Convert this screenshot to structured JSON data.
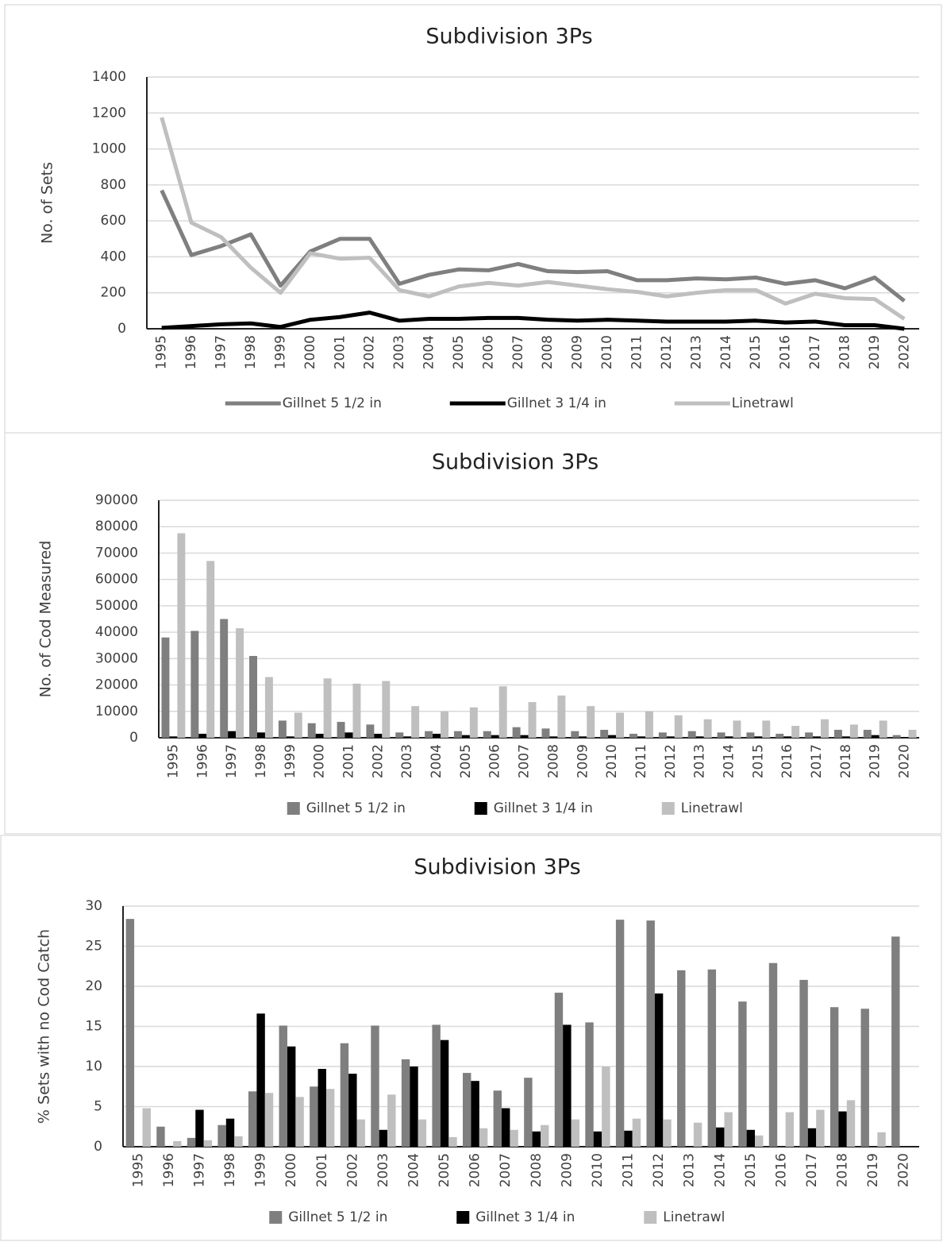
{
  "chart_data": [
    {
      "type": "line",
      "title": "Subdivision 3Ps",
      "y_label": "No. of Sets",
      "categories": [
        "1995",
        "1996",
        "1997",
        "1998",
        "1999",
        "2000",
        "2001",
        "2002",
        "2003",
        "2004",
        "2005",
        "2006",
        "2007",
        "2008",
        "2009",
        "2010",
        "2011",
        "2012",
        "2013",
        "2014",
        "2015",
        "2016",
        "2017",
        "2018",
        "2019",
        "2020"
      ],
      "series": [
        {
          "name": "Gillnet 5 1/2 in",
          "color": "#7f7f7f",
          "values": [
            770,
            410,
            460,
            525,
            240,
            430,
            500,
            500,
            250,
            300,
            330,
            325,
            360,
            320,
            315,
            320,
            270,
            270,
            280,
            275,
            285,
            250,
            270,
            225,
            285,
            155
          ]
        },
        {
          "name": "Gillnet 3 1/4 in",
          "color": "#000000",
          "values": [
            5,
            15,
            25,
            30,
            10,
            50,
            65,
            90,
            45,
            55,
            55,
            60,
            60,
            50,
            45,
            50,
            45,
            40,
            40,
            40,
            45,
            35,
            40,
            20,
            20,
            0
          ]
        },
        {
          "name": "Linetrawl",
          "color": "#bfbfbf",
          "values": [
            1175,
            590,
            510,
            340,
            200,
            420,
            390,
            395,
            215,
            180,
            235,
            255,
            240,
            260,
            240,
            220,
            205,
            180,
            200,
            215,
            215,
            140,
            195,
            170,
            165,
            55
          ]
        }
      ],
      "ylim": [
        0,
        1400
      ],
      "yticks": [
        0,
        200,
        400,
        600,
        800,
        1000,
        1200,
        1400
      ],
      "grid": true,
      "legend": "bottom"
    },
    {
      "type": "bar",
      "title": "Subdivision 3Ps",
      "y_label": "No. of Cod Measured",
      "categories": [
        "1995",
        "1996",
        "1997",
        "1998",
        "1999",
        "2000",
        "2001",
        "2002",
        "2003",
        "2004",
        "2005",
        "2006",
        "2007",
        "2008",
        "2009",
        "2010",
        "2011",
        "2012",
        "2013",
        "2014",
        "2015",
        "2016",
        "2017",
        "2018",
        "2019",
        "2020"
      ],
      "series": [
        {
          "name": "Gillnet 5 1/2 in",
          "color": "#7f7f7f",
          "values": [
            38000,
            40500,
            45000,
            31000,
            6500,
            5500,
            6000,
            5000,
            2000,
            2500,
            2500,
            2500,
            4000,
            3500,
            2500,
            3000,
            1500,
            2000,
            2500,
            2000,
            2000,
            1500,
            2000,
            3000,
            3000,
            1000
          ]
        },
        {
          "name": "Gillnet 3 1/4 in",
          "color": "#000000",
          "values": [
            500,
            1500,
            2500,
            2000,
            500,
            1500,
            2000,
            1500,
            500,
            1500,
            1000,
            1000,
            1000,
            500,
            500,
            1000,
            500,
            500,
            500,
            500,
            500,
            500,
            500,
            500,
            1000,
            200
          ]
        },
        {
          "name": "Linetrawl",
          "color": "#bfbfbf",
          "values": [
            77500,
            67000,
            41500,
            23000,
            9500,
            22500,
            20500,
            21500,
            12000,
            10000,
            11500,
            19500,
            13500,
            16000,
            12000,
            9500,
            10000,
            8500,
            7000,
            6500,
            6500,
            4500,
            7000,
            5000,
            6500,
            3000
          ]
        }
      ],
      "ylim": [
        0,
        90000
      ],
      "yticks": [
        0,
        10000,
        20000,
        30000,
        40000,
        50000,
        60000,
        70000,
        80000,
        90000
      ],
      "grid": true,
      "legend": "bottom"
    },
    {
      "type": "bar",
      "title": "Subdivision 3Ps",
      "y_label": "% Sets with no Cod Catch",
      "categories": [
        "1995",
        "1996",
        "1997",
        "1998",
        "1999",
        "2000",
        "2001",
        "2002",
        "2003",
        "2004",
        "2005",
        "2006",
        "2007",
        "2008",
        "2009",
        "2010",
        "2011",
        "2012",
        "2013",
        "2014",
        "2015",
        "2016",
        "2017",
        "2018",
        "2019",
        "2020"
      ],
      "series": [
        {
          "name": "Gillnet 5 1/2 in",
          "color": "#7f7f7f",
          "values": [
            28.4,
            2.5,
            1.1,
            2.7,
            6.9,
            15.1,
            7.5,
            12.9,
            15.1,
            10.9,
            15.2,
            9.2,
            7.0,
            8.6,
            19.2,
            15.5,
            28.3,
            28.2,
            22.0,
            22.1,
            18.1,
            22.9,
            20.8,
            17.4,
            17.2,
            26.2
          ]
        },
        {
          "name": "Gillnet 3 1/4 in",
          "color": "#000000",
          "values": [
            0,
            0,
            4.6,
            3.5,
            16.6,
            12.5,
            9.7,
            9.1,
            2.1,
            10.0,
            13.3,
            8.2,
            4.8,
            1.9,
            15.2,
            1.9,
            2.0,
            19.1,
            0,
            2.4,
            2.1,
            0,
            2.3,
            4.4,
            0,
            0
          ]
        },
        {
          "name": "Linetrawl",
          "color": "#bfbfbf",
          "values": [
            4.8,
            0.7,
            0.8,
            1.3,
            6.7,
            6.2,
            7.2,
            3.4,
            6.5,
            3.4,
            1.2,
            2.3,
            2.1,
            2.7,
            3.4,
            10.0,
            3.5,
            3.4,
            3.0,
            4.3,
            1.4,
            4.3,
            4.6,
            5.8,
            1.8,
            0
          ]
        }
      ],
      "ylim": [
        0,
        30
      ],
      "yticks": [
        0,
        5,
        10,
        15,
        20,
        25,
        30
      ],
      "grid": true,
      "legend": "bottom"
    }
  ]
}
